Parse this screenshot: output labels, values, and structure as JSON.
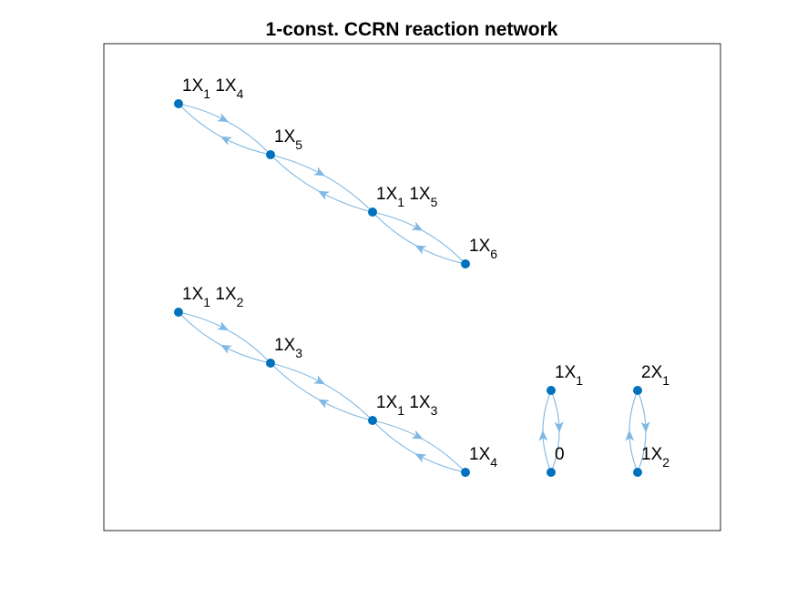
{
  "title": "1-const. CCRN reaction network",
  "colors": {
    "node": "#0072BD",
    "edge": "#7FB8E4",
    "axes": "#262626"
  },
  "nodes": [
    {
      "id": "n_x1x4",
      "label": [
        [
          "1X",
          ""
        ],
        [
          "1",
          "sub"
        ],
        [
          " 1X",
          ""
        ],
        [
          "4",
          "sub"
        ]
      ]
    },
    {
      "id": "n_x5",
      "label": [
        [
          "1X",
          ""
        ],
        [
          "5",
          "sub"
        ]
      ]
    },
    {
      "id": "n_x1x5",
      "label": [
        [
          "1X",
          ""
        ],
        [
          "1",
          "sub"
        ],
        [
          " 1X",
          ""
        ],
        [
          "5",
          "sub"
        ]
      ]
    },
    {
      "id": "n_x6",
      "label": [
        [
          "1X",
          ""
        ],
        [
          "6",
          "sub"
        ]
      ]
    },
    {
      "id": "n_x1x2",
      "label": [
        [
          "1X",
          ""
        ],
        [
          "1",
          "sub"
        ],
        [
          " 1X",
          ""
        ],
        [
          "2",
          "sub"
        ]
      ]
    },
    {
      "id": "n_x3",
      "label": [
        [
          "1X",
          ""
        ],
        [
          "3",
          "sub"
        ]
      ]
    },
    {
      "id": "n_x1x3",
      "label": [
        [
          "1X",
          ""
        ],
        [
          "1",
          "sub"
        ],
        [
          " 1X",
          ""
        ],
        [
          "3",
          "sub"
        ]
      ]
    },
    {
      "id": "n_x4",
      "label": [
        [
          "1X",
          ""
        ],
        [
          "4",
          "sub"
        ]
      ]
    },
    {
      "id": "n_x1",
      "label": [
        [
          "1X",
          ""
        ],
        [
          "1",
          "sub"
        ]
      ]
    },
    {
      "id": "n_zero",
      "label": [
        [
          "0",
          ""
        ]
      ]
    },
    {
      "id": "n_2x1",
      "label": [
        [
          "2X",
          ""
        ],
        [
          "1",
          "sub"
        ]
      ]
    },
    {
      "id": "n_x2",
      "label": [
        [
          "1X",
          ""
        ],
        [
          "2",
          "sub"
        ]
      ]
    }
  ],
  "edges": [
    {
      "from": "n_x1x4",
      "to": "n_x5"
    },
    {
      "from": "n_x5",
      "to": "n_x1x4"
    },
    {
      "from": "n_x5",
      "to": "n_x1x5"
    },
    {
      "from": "n_x1x5",
      "to": "n_x5"
    },
    {
      "from": "n_x1x5",
      "to": "n_x6"
    },
    {
      "from": "n_x6",
      "to": "n_x1x5"
    },
    {
      "from": "n_x1x2",
      "to": "n_x3"
    },
    {
      "from": "n_x3",
      "to": "n_x1x2"
    },
    {
      "from": "n_x3",
      "to": "n_x1x3"
    },
    {
      "from": "n_x1x3",
      "to": "n_x3"
    },
    {
      "from": "n_x1x3",
      "to": "n_x4"
    },
    {
      "from": "n_x4",
      "to": "n_x1x3"
    },
    {
      "from": "n_x1",
      "to": "n_zero"
    },
    {
      "from": "n_zero",
      "to": "n_x1"
    },
    {
      "from": "n_2x1",
      "to": "n_x2"
    },
    {
      "from": "n_x2",
      "to": "n_2x1"
    }
  ]
}
